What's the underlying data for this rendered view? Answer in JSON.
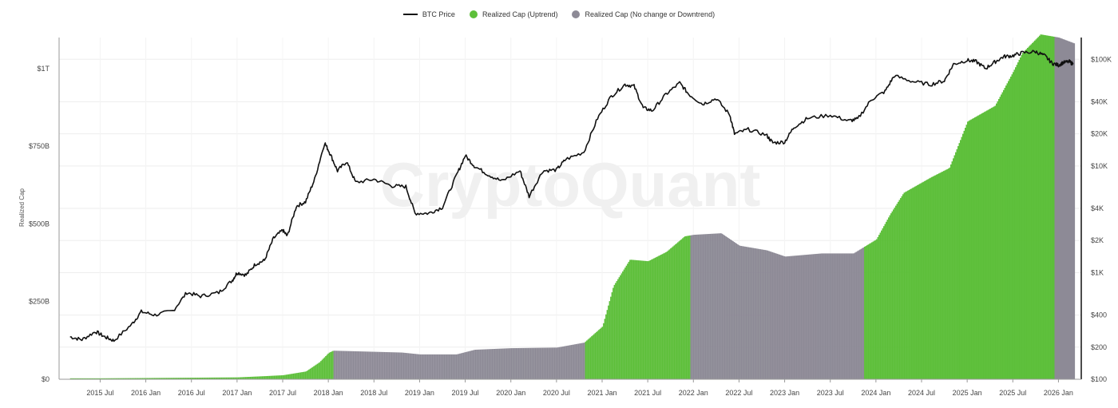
{
  "legend": {
    "price": "BTC Price",
    "uptrend": "Realized Cap (Uptrend)",
    "down": "Realized Cap (No change or Downtrend)"
  },
  "watermark": "CryptoQuant",
  "colors": {
    "uptrend": "#5dbf3a",
    "down": "#8d8a96",
    "price": "#111111"
  },
  "chart_data": {
    "type": "area",
    "ylabel": "Realized Cap",
    "left_axis": {
      "ticks": [
        0,
        250,
        500,
        750,
        1000
      ],
      "tick_labels": [
        "$0",
        "$250B",
        "$500B",
        "$750B",
        "$1T"
      ],
      "ylim": [
        0,
        1100
      ],
      "unit": "B USD"
    },
    "right_axis": {
      "scale": "log",
      "ticks": [
        100,
        200,
        400,
        1000,
        2000,
        4000,
        10000,
        20000,
        40000,
        100000
      ],
      "tick_labels": [
        "$100",
        "$200",
        "$400",
        "$1K",
        "$2K",
        "$4K",
        "$10K",
        "$20K",
        "$40K",
        "$100K"
      ],
      "ylim": [
        100,
        160000
      ]
    },
    "x_ticks": [
      {
        "t": 2015.5,
        "label": "2015 Jul"
      },
      {
        "t": 2016.0,
        "label": "2016 Jan"
      },
      {
        "t": 2016.5,
        "label": "2016 Jul"
      },
      {
        "t": 2017.0,
        "label": "2017 Jan"
      },
      {
        "t": 2017.5,
        "label": "2017 Jul"
      },
      {
        "t": 2018.0,
        "label": "2018 Jan"
      },
      {
        "t": 2018.5,
        "label": "2018 Jul"
      },
      {
        "t": 2019.0,
        "label": "2019 Jan"
      },
      {
        "t": 2019.5,
        "label": "2019 Jul"
      },
      {
        "t": 2020.0,
        "label": "2020 Jan"
      },
      {
        "t": 2020.5,
        "label": "2020 Jul"
      },
      {
        "t": 2021.0,
        "label": "2021 Jan"
      },
      {
        "t": 2021.5,
        "label": "2021 Jul"
      },
      {
        "t": 2022.0,
        "label": "2022 Jan"
      },
      {
        "t": 2022.5,
        "label": "2022 Jul"
      },
      {
        "t": 2023.0,
        "label": "2023 Jan"
      },
      {
        "t": 2023.5,
        "label": "2023 Jul"
      },
      {
        "t": 2024.0,
        "label": "2024 Jan"
      },
      {
        "t": 2024.5,
        "label": "2024 Jul"
      },
      {
        "t": 2025.0,
        "label": "2025 Jan"
      },
      {
        "t": 2025.5,
        "label": "2025 Jul"
      },
      {
        "t": 2026.0,
        "label": "2026 Jan"
      }
    ],
    "xlim": [
      2015.05,
      2026.25
    ],
    "realized_cap_series": [
      [
        2015.17,
        3
      ],
      [
        2015.5,
        3
      ],
      [
        2016.0,
        4
      ],
      [
        2016.5,
        5
      ],
      [
        2017.0,
        6
      ],
      [
        2017.3,
        10
      ],
      [
        2017.5,
        13
      ],
      [
        2017.75,
        25
      ],
      [
        2017.9,
        55
      ],
      [
        2018.0,
        85
      ],
      [
        2018.05,
        92
      ],
      [
        2018.3,
        90
      ],
      [
        2018.8,
        86
      ],
      [
        2019.0,
        80
      ],
      [
        2019.4,
        80
      ],
      [
        2019.6,
        95
      ],
      [
        2020.0,
        100
      ],
      [
        2020.5,
        102
      ],
      [
        2020.8,
        118
      ],
      [
        2021.0,
        170
      ],
      [
        2021.12,
        300
      ],
      [
        2021.3,
        385
      ],
      [
        2021.5,
        380
      ],
      [
        2021.7,
        410
      ],
      [
        2021.9,
        460
      ],
      [
        2022.0,
        465
      ],
      [
        2022.3,
        470
      ],
      [
        2022.5,
        430
      ],
      [
        2022.8,
        415
      ],
      [
        2023.0,
        395
      ],
      [
        2023.4,
        405
      ],
      [
        2023.75,
        405
      ],
      [
        2024.0,
        450
      ],
      [
        2024.15,
        530
      ],
      [
        2024.3,
        600
      ],
      [
        2024.6,
        650
      ],
      [
        2024.8,
        680
      ],
      [
        2025.0,
        830
      ],
      [
        2025.3,
        880
      ],
      [
        2025.5,
        990
      ],
      [
        2025.6,
        1050
      ],
      [
        2025.8,
        1110
      ],
      [
        2026.0,
        1100
      ],
      [
        2026.18,
        1080
      ]
    ],
    "trend_segments": [
      {
        "start": 2015.17,
        "end": 2018.05,
        "trend": "uptrend"
      },
      {
        "start": 2018.05,
        "end": 2020.8,
        "trend": "down"
      },
      {
        "start": 2020.8,
        "end": 2021.96,
        "trend": "uptrend"
      },
      {
        "start": 2021.96,
        "end": 2023.87,
        "trend": "down"
      },
      {
        "start": 2023.87,
        "end": 2025.95,
        "trend": "uptrend"
      },
      {
        "start": 2025.95,
        "end": 2026.18,
        "trend": "down"
      }
    ],
    "btc_price_series": [
      [
        2015.17,
        250
      ],
      [
        2015.3,
        235
      ],
      [
        2015.45,
        280
      ],
      [
        2015.55,
        250
      ],
      [
        2015.65,
        230
      ],
      [
        2015.85,
        330
      ],
      [
        2015.95,
        430
      ],
      [
        2016.1,
        400
      ],
      [
        2016.3,
        440
      ],
      [
        2016.45,
        650
      ],
      [
        2016.6,
        600
      ],
      [
        2016.8,
        650
      ],
      [
        2016.95,
        850
      ],
      [
        2017.0,
        1000
      ],
      [
        2017.1,
        950
      ],
      [
        2017.2,
        1200
      ],
      [
        2017.3,
        1300
      ],
      [
        2017.4,
        2100
      ],
      [
        2017.5,
        2500
      ],
      [
        2017.55,
        2200
      ],
      [
        2017.65,
        4200
      ],
      [
        2017.75,
        4600
      ],
      [
        2017.85,
        7500
      ],
      [
        2017.96,
        16500
      ],
      [
        2018.02,
        13000
      ],
      [
        2018.1,
        9000
      ],
      [
        2018.2,
        11000
      ],
      [
        2018.3,
        7000
      ],
      [
        2018.5,
        7500
      ],
      [
        2018.7,
        6500
      ],
      [
        2018.85,
        6400
      ],
      [
        2018.95,
        3600
      ],
      [
        2019.1,
        3600
      ],
      [
        2019.25,
        4100
      ],
      [
        2019.4,
        8000
      ],
      [
        2019.5,
        12500
      ],
      [
        2019.6,
        10000
      ],
      [
        2019.75,
        8300
      ],
      [
        2019.9,
        7200
      ],
      [
        2020.1,
        9000
      ],
      [
        2020.2,
        5200
      ],
      [
        2020.35,
        9000
      ],
      [
        2020.5,
        9200
      ],
      [
        2020.6,
        11500
      ],
      [
        2020.8,
        13500
      ],
      [
        2020.95,
        28000
      ],
      [
        2021.1,
        45000
      ],
      [
        2021.25,
        58000
      ],
      [
        2021.35,
        56000
      ],
      [
        2021.45,
        35000
      ],
      [
        2021.55,
        33000
      ],
      [
        2021.7,
        47000
      ],
      [
        2021.85,
        60000
      ],
      [
        2021.95,
        47000
      ],
      [
        2022.1,
        38000
      ],
      [
        2022.25,
        43000
      ],
      [
        2022.4,
        30000
      ],
      [
        2022.45,
        20000
      ],
      [
        2022.6,
        22000
      ],
      [
        2022.8,
        19500
      ],
      [
        2022.87,
        16500
      ],
      [
        2023.0,
        16800
      ],
      [
        2023.1,
        23000
      ],
      [
        2023.25,
        28000
      ],
      [
        2023.5,
        30000
      ],
      [
        2023.7,
        26500
      ],
      [
        2023.8,
        27500
      ],
      [
        2023.95,
        42000
      ],
      [
        2024.1,
        50000
      ],
      [
        2024.2,
        70000
      ],
      [
        2024.4,
        62000
      ],
      [
        2024.6,
        58000
      ],
      [
        2024.75,
        63000
      ],
      [
        2024.85,
        90000
      ],
      [
        2025.0,
        98000
      ],
      [
        2025.1,
        95000
      ],
      [
        2025.2,
        82000
      ],
      [
        2025.3,
        94000
      ],
      [
        2025.4,
        106000
      ],
      [
        2025.5,
        108000
      ],
      [
        2025.6,
        115000
      ],
      [
        2025.75,
        118000
      ],
      [
        2025.85,
        108000
      ],
      [
        2025.93,
        92000
      ],
      [
        2026.0,
        88000
      ],
      [
        2026.05,
        93000
      ],
      [
        2026.12,
        95000
      ],
      [
        2026.16,
        90000
      ]
    ]
  }
}
